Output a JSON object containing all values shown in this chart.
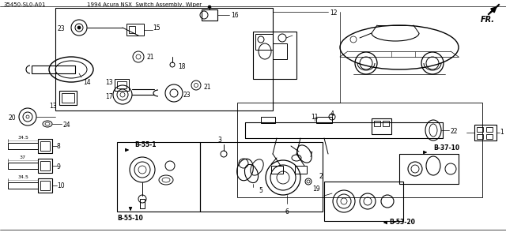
{
  "bg_color": "#ffffff",
  "line_color": "#000000",
  "header_left": "35450-SL0-A01",
  "header_right": "1994 Acura NSX  Switch Assembly, Wiper",
  "fr_label": "FR.",
  "items": {
    "keys": [
      {
        "label": "8",
        "dim": "34.5"
      },
      {
        "label": "9",
        "dim": "37"
      },
      {
        "label": "10",
        "dim": "34.5"
      }
    ],
    "ref_boxes": [
      "B-55-1",
      "B-55-10",
      "B-53-20",
      "B-37-10"
    ]
  }
}
